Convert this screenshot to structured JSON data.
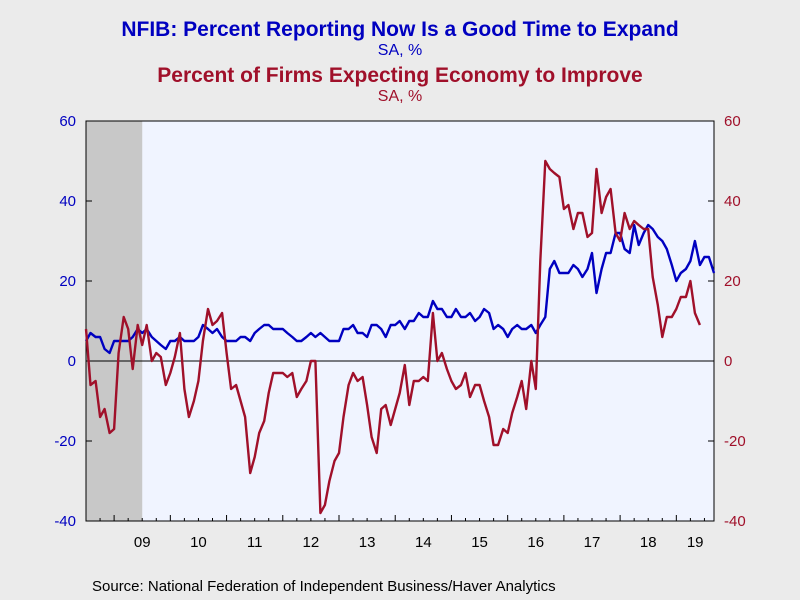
{
  "chart_data": {
    "type": "line",
    "title": "NFIB: Percent Reporting Now Is a Good Time to Expand",
    "title_units": "SA, %",
    "subtitle": "Percent of Firms Expecting Economy to Improve",
    "subtitle_units": "SA, %",
    "source": "Source:  National Federation of Independent Business/Haver Analytics",
    "x_tick_labels": [
      "09",
      "10",
      "11",
      "12",
      "13",
      "14",
      "15",
      "16",
      "17",
      "18",
      "19"
    ],
    "y_left_ticks": [
      "60",
      "40",
      "20",
      "0",
      "-20",
      "-40"
    ],
    "y_right_ticks": [
      "60",
      "40",
      "20",
      "0",
      "-20",
      "-40"
    ],
    "ylim": [
      -40,
      60
    ],
    "xlim": [
      2008.5,
      2019.67
    ],
    "grid": false,
    "recession_shading": {
      "start": 2008.5,
      "end": 2009.5,
      "color": "#c8c8c8"
    },
    "zero_line": true,
    "plot_background": "#f0f4ff",
    "series": [
      {
        "axis": "left",
        "color": "#0000c0",
        "values": [
          [
            2008.5,
            5
          ],
          [
            2008.58,
            7
          ],
          [
            2008.67,
            6
          ],
          [
            2008.75,
            6
          ],
          [
            2008.83,
            3
          ],
          [
            2008.92,
            2
          ],
          [
            2009.0,
            5
          ],
          [
            2009.08,
            5
          ],
          [
            2009.17,
            5
          ],
          [
            2009.25,
            5
          ],
          [
            2009.33,
            6
          ],
          [
            2009.42,
            8
          ],
          [
            2009.5,
            7
          ],
          [
            2009.58,
            8
          ],
          [
            2009.67,
            6
          ],
          [
            2009.75,
            5
          ],
          [
            2009.83,
            4
          ],
          [
            2009.92,
            3
          ],
          [
            2010.0,
            5
          ],
          [
            2010.08,
            5
          ],
          [
            2010.17,
            6
          ],
          [
            2010.25,
            5
          ],
          [
            2010.33,
            5
          ],
          [
            2010.42,
            5
          ],
          [
            2010.5,
            6
          ],
          [
            2010.58,
            9
          ],
          [
            2010.67,
            8
          ],
          [
            2010.75,
            7
          ],
          [
            2010.83,
            8
          ],
          [
            2010.92,
            6
          ],
          [
            2011.0,
            5
          ],
          [
            2011.08,
            5
          ],
          [
            2011.17,
            5
          ],
          [
            2011.25,
            6
          ],
          [
            2011.33,
            6
          ],
          [
            2011.42,
            5
          ],
          [
            2011.5,
            7
          ],
          [
            2011.58,
            8
          ],
          [
            2011.67,
            9
          ],
          [
            2011.75,
            9
          ],
          [
            2011.83,
            8
          ],
          [
            2011.92,
            8
          ],
          [
            2012.0,
            8
          ],
          [
            2012.08,
            7
          ],
          [
            2012.17,
            6
          ],
          [
            2012.25,
            5
          ],
          [
            2012.33,
            5
          ],
          [
            2012.42,
            6
          ],
          [
            2012.5,
            7
          ],
          [
            2012.58,
            6
          ],
          [
            2012.67,
            7
          ],
          [
            2012.75,
            6
          ],
          [
            2012.83,
            5
          ],
          [
            2012.92,
            5
          ],
          [
            2013.0,
            5
          ],
          [
            2013.08,
            8
          ],
          [
            2013.17,
            8
          ],
          [
            2013.25,
            9
          ],
          [
            2013.33,
            7
          ],
          [
            2013.42,
            7
          ],
          [
            2013.5,
            6
          ],
          [
            2013.58,
            9
          ],
          [
            2013.67,
            9
          ],
          [
            2013.75,
            8
          ],
          [
            2013.83,
            6
          ],
          [
            2013.92,
            9
          ],
          [
            2014.0,
            9
          ],
          [
            2014.08,
            10
          ],
          [
            2014.17,
            8
          ],
          [
            2014.25,
            10
          ],
          [
            2014.33,
            10
          ],
          [
            2014.42,
            12
          ],
          [
            2014.5,
            11
          ],
          [
            2014.58,
            11
          ],
          [
            2014.67,
            15
          ],
          [
            2014.75,
            13
          ],
          [
            2014.83,
            13
          ],
          [
            2014.92,
            11
          ],
          [
            2015.0,
            11
          ],
          [
            2015.08,
            13
          ],
          [
            2015.17,
            11
          ],
          [
            2015.25,
            11
          ],
          [
            2015.33,
            12
          ],
          [
            2015.42,
            10
          ],
          [
            2015.5,
            11
          ],
          [
            2015.58,
            13
          ],
          [
            2015.67,
            12
          ],
          [
            2015.75,
            8
          ],
          [
            2015.83,
            9
          ],
          [
            2015.92,
            8
          ],
          [
            2016.0,
            6
          ],
          [
            2016.08,
            8
          ],
          [
            2016.17,
            9
          ],
          [
            2016.25,
            8
          ],
          [
            2016.33,
            8
          ],
          [
            2016.42,
            9
          ],
          [
            2016.5,
            7
          ],
          [
            2016.58,
            9
          ],
          [
            2016.67,
            11
          ],
          [
            2016.75,
            23
          ],
          [
            2016.83,
            25
          ],
          [
            2016.92,
            22
          ],
          [
            2017.0,
            22
          ],
          [
            2017.08,
            22
          ],
          [
            2017.17,
            24
          ],
          [
            2017.25,
            23
          ],
          [
            2017.33,
            21
          ],
          [
            2017.42,
            23
          ],
          [
            2017.5,
            27
          ],
          [
            2017.58,
            17
          ],
          [
            2017.67,
            23
          ],
          [
            2017.75,
            27
          ],
          [
            2017.83,
            27
          ],
          [
            2017.92,
            32
          ],
          [
            2018.0,
            32
          ],
          [
            2018.08,
            28
          ],
          [
            2018.17,
            27
          ],
          [
            2018.25,
            34
          ],
          [
            2018.33,
            29
          ],
          [
            2018.42,
            32
          ],
          [
            2018.5,
            34
          ],
          [
            2018.58,
            33
          ],
          [
            2018.67,
            31
          ],
          [
            2018.75,
            30
          ],
          [
            2018.83,
            28
          ],
          [
            2018.92,
            24
          ],
          [
            2019.0,
            20
          ],
          [
            2019.08,
            22
          ],
          [
            2019.17,
            23
          ],
          [
            2019.25,
            25
          ],
          [
            2019.33,
            30
          ],
          [
            2019.42,
            24
          ],
          [
            2019.5,
            26
          ],
          [
            2019.58,
            26
          ],
          [
            2019.67,
            22
          ]
        ]
      },
      {
        "axis": "right",
        "color": "#a0102a",
        "values": [
          [
            2008.5,
            8
          ],
          [
            2008.58,
            -6
          ],
          [
            2008.67,
            -5
          ],
          [
            2008.75,
            -14
          ],
          [
            2008.83,
            -12
          ],
          [
            2008.92,
            -18
          ],
          [
            2009.0,
            -17
          ],
          [
            2009.08,
            2
          ],
          [
            2009.17,
            11
          ],
          [
            2009.25,
            8
          ],
          [
            2009.33,
            -2
          ],
          [
            2009.42,
            9
          ],
          [
            2009.5,
            4
          ],
          [
            2009.58,
            9
          ],
          [
            2009.67,
            0
          ],
          [
            2009.75,
            2
          ],
          [
            2009.83,
            1
          ],
          [
            2009.92,
            -6
          ],
          [
            2010.0,
            -3
          ],
          [
            2010.08,
            1
          ],
          [
            2010.17,
            7
          ],
          [
            2010.25,
            -7
          ],
          [
            2010.33,
            -14
          ],
          [
            2010.42,
            -10
          ],
          [
            2010.5,
            -5
          ],
          [
            2010.58,
            5
          ],
          [
            2010.67,
            13
          ],
          [
            2010.75,
            9
          ],
          [
            2010.83,
            10
          ],
          [
            2010.92,
            12
          ],
          [
            2011.0,
            2
          ],
          [
            2011.08,
            -7
          ],
          [
            2011.17,
            -6
          ],
          [
            2011.25,
            -10
          ],
          [
            2011.33,
            -14
          ],
          [
            2011.42,
            -28
          ],
          [
            2011.5,
            -24
          ],
          [
            2011.58,
            -18
          ],
          [
            2011.67,
            -15
          ],
          [
            2011.75,
            -8
          ],
          [
            2011.83,
            -3
          ],
          [
            2011.92,
            -3
          ],
          [
            2012.0,
            -3
          ],
          [
            2012.08,
            -4
          ],
          [
            2012.17,
            -3
          ],
          [
            2012.25,
            -9
          ],
          [
            2012.33,
            -7
          ],
          [
            2012.42,
            -5
          ],
          [
            2012.5,
            0
          ],
          [
            2012.58,
            0
          ],
          [
            2012.67,
            -38
          ],
          [
            2012.75,
            -36
          ],
          [
            2012.83,
            -30
          ],
          [
            2012.92,
            -25
          ],
          [
            2013.0,
            -23
          ],
          [
            2013.08,
            -14
          ],
          [
            2013.17,
            -6
          ],
          [
            2013.25,
            -3
          ],
          [
            2013.33,
            -5
          ],
          [
            2013.42,
            -4
          ],
          [
            2013.5,
            -11
          ],
          [
            2013.58,
            -19
          ],
          [
            2013.67,
            -23
          ],
          [
            2013.75,
            -12
          ],
          [
            2013.83,
            -11
          ],
          [
            2013.92,
            -16
          ],
          [
            2014.0,
            -12
          ],
          [
            2014.08,
            -8
          ],
          [
            2014.17,
            -1
          ],
          [
            2014.25,
            -11
          ],
          [
            2014.33,
            -5
          ],
          [
            2014.42,
            -5
          ],
          [
            2014.5,
            -4
          ],
          [
            2014.58,
            -5
          ],
          [
            2014.67,
            12
          ],
          [
            2014.75,
            0
          ],
          [
            2014.83,
            2
          ],
          [
            2014.92,
            -2
          ],
          [
            2015.0,
            -5
          ],
          [
            2015.08,
            -7
          ],
          [
            2015.17,
            -6
          ],
          [
            2015.25,
            -3
          ],
          [
            2015.33,
            -9
          ],
          [
            2015.42,
            -6
          ],
          [
            2015.5,
            -6
          ],
          [
            2015.58,
            -10
          ],
          [
            2015.67,
            -14
          ],
          [
            2015.75,
            -21
          ],
          [
            2015.83,
            -21
          ],
          [
            2015.92,
            -17
          ],
          [
            2016.0,
            -18
          ],
          [
            2016.08,
            -13
          ],
          [
            2016.17,
            -9
          ],
          [
            2016.25,
            -5
          ],
          [
            2016.33,
            -12
          ],
          [
            2016.42,
            0
          ],
          [
            2016.5,
            -7
          ],
          [
            2016.58,
            25
          ],
          [
            2016.67,
            50
          ],
          [
            2016.75,
            48
          ],
          [
            2016.83,
            47
          ],
          [
            2016.92,
            46
          ],
          [
            2017.0,
            38
          ],
          [
            2017.08,
            39
          ],
          [
            2017.17,
            33
          ],
          [
            2017.25,
            37
          ],
          [
            2017.33,
            37
          ],
          [
            2017.42,
            31
          ],
          [
            2017.5,
            32
          ],
          [
            2017.58,
            48
          ],
          [
            2017.67,
            37
          ],
          [
            2017.75,
            41
          ],
          [
            2017.83,
            43
          ],
          [
            2017.92,
            32
          ],
          [
            2018.0,
            30
          ],
          [
            2018.08,
            37
          ],
          [
            2018.17,
            33
          ],
          [
            2018.25,
            35
          ],
          [
            2018.33,
            34
          ],
          [
            2018.42,
            33
          ],
          [
            2018.5,
            33
          ],
          [
            2018.58,
            21
          ],
          [
            2018.67,
            14
          ],
          [
            2018.75,
            6
          ],
          [
            2018.83,
            11
          ],
          [
            2018.92,
            11
          ],
          [
            2019.0,
            13
          ],
          [
            2019.08,
            16
          ],
          [
            2019.17,
            16
          ],
          [
            2019.25,
            20
          ],
          [
            2019.33,
            12
          ],
          [
            2019.42,
            9
          ]
        ]
      }
    ]
  }
}
